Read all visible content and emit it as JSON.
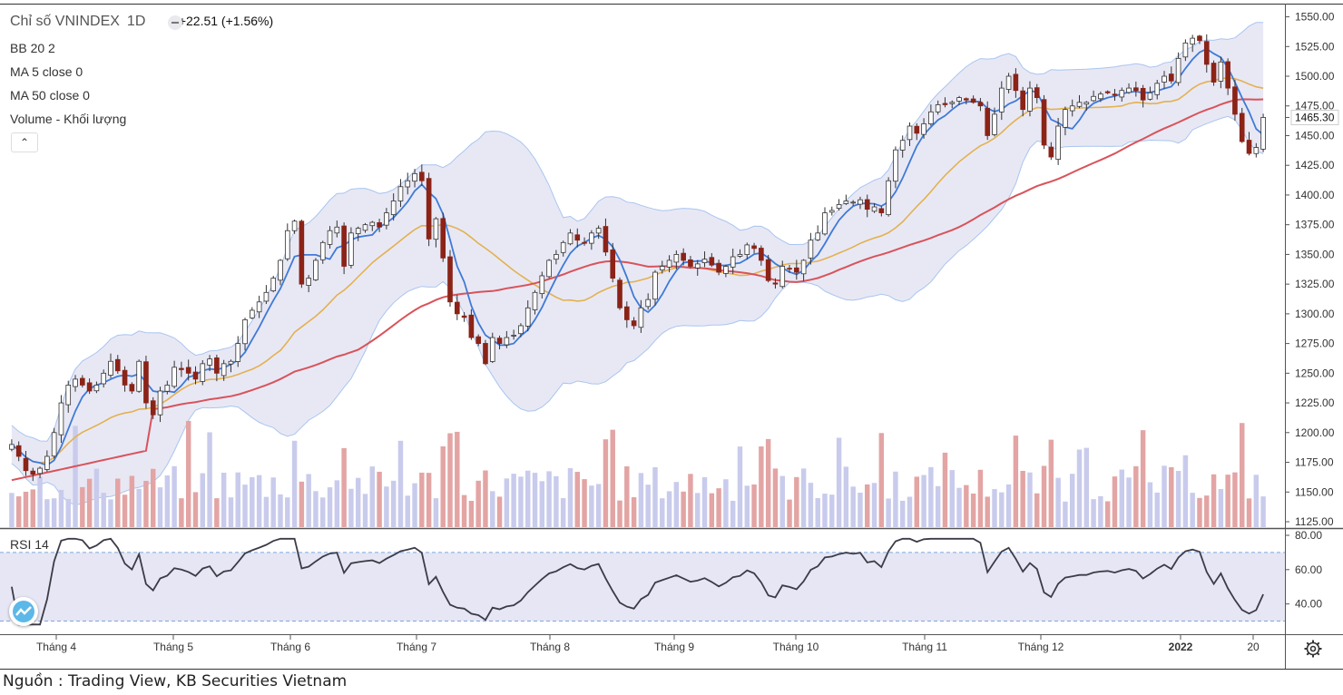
{
  "legend": {
    "symbol_title": "Chỉ số VNINDEX",
    "timeframe": "1D",
    "change": "+22.51 (+1.56%)",
    "indicators": [
      "BB 20 2",
      "MA 5 close 0",
      "MA 50 close 0",
      "Volume - Khối lượng"
    ]
  },
  "rsi_label": "RSI 14",
  "source": "Nguồn : Trading View, KB Securities Vietnam",
  "colors": {
    "up": "#ffffff",
    "down": "#8b2317",
    "ma5": "#3f7ad6",
    "ma20": "#e3b14f",
    "ma50": "#d9535a",
    "band_fill": "#e4e4f3",
    "band_line": "#a9c5ef",
    "vol_up": "#c9cbec",
    "vol_down": "#e3a4a4",
    "rsi": "#3c3c48"
  },
  "icons": {
    "collapse": "chevron-up-icon",
    "logo": "tradingview-logo-icon",
    "settings": "gear-icon"
  },
  "chart_data": {
    "type": "candlestick",
    "title": "Chỉ số VNINDEX",
    "last_price": 1465.3,
    "price_axis": {
      "ticks": [
        1125,
        1150,
        1175,
        1200,
        1225,
        1250,
        1275,
        1300,
        1325,
        1350,
        1375,
        1400,
        1425,
        1450,
        1475,
        1500,
        1525,
        1550
      ],
      "range": [
        1125,
        1555
      ]
    },
    "rsi_axis": {
      "ticks": [
        40,
        60,
        80
      ],
      "range": [
        25,
        80
      ],
      "bands": [
        30,
        70
      ]
    },
    "x_labels": [
      "Tháng 4",
      "Tháng 5",
      "Tháng 6",
      "Tháng 7",
      "Tháng 8",
      "Tháng 9",
      "Tháng 10",
      "Tháng 11",
      "Tháng 12",
      "2022",
      "20"
    ],
    "closes": [
      1190,
      1180,
      1168,
      1165,
      1170,
      1180,
      1200,
      1225,
      1240,
      1245,
      1240,
      1235,
      1240,
      1250,
      1260,
      1252,
      1240,
      1235,
      1260,
      1225,
      1215,
      1235,
      1240,
      1255,
      1253,
      1250,
      1245,
      1258,
      1262,
      1250,
      1258,
      1260,
      1275,
      1295,
      1303,
      1310,
      1318,
      1330,
      1345,
      1370,
      1378,
      1325,
      1330,
      1345,
      1360,
      1370,
      1373,
      1340,
      1368,
      1372,
      1375,
      1377,
      1373,
      1385,
      1395,
      1407,
      1412,
      1418,
      1412,
      1363,
      1380,
      1347,
      1310,
      1300,
      1297,
      1280,
      1275,
      1258,
      1280,
      1275,
      1280,
      1282,
      1290,
      1305,
      1318,
      1332,
      1345,
      1350,
      1360,
      1368,
      1362,
      1360,
      1368,
      1372,
      1352,
      1330,
      1305,
      1295,
      1290,
      1305,
      1312,
      1335,
      1340,
      1345,
      1350,
      1345,
      1340,
      1342,
      1346,
      1341,
      1335,
      1340,
      1348,
      1350,
      1358,
      1355,
      1345,
      1328,
      1325,
      1340,
      1338,
      1335,
      1345,
      1362,
      1368,
      1385,
      1387,
      1392,
      1395,
      1394,
      1396,
      1388,
      1390,
      1385,
      1412,
      1438,
      1446,
      1458,
      1452,
      1460,
      1470,
      1476,
      1476,
      1478,
      1482,
      1480,
      1478,
      1475,
      1450,
      1468,
      1490,
      1500,
      1488,
      1472,
      1490,
      1482,
      1442,
      1432,
      1458,
      1472,
      1475,
      1478,
      1478,
      1483,
      1485,
      1486,
      1484,
      1488,
      1490,
      1488,
      1480,
      1486,
      1494,
      1500,
      1496,
      1515,
      1528,
      1532,
      1530,
      1510,
      1495,
      1512,
      1490,
      1468,
      1445,
      1435,
      1440,
      1465.3
    ],
    "volume": "per-session bars, shaded by up/down day",
    "series": [
      {
        "name": "BB 20 2"
      },
      {
        "name": "MA 5 close 0"
      },
      {
        "name": "MA 50 close 0"
      },
      {
        "name": "RSI 14"
      }
    ]
  }
}
